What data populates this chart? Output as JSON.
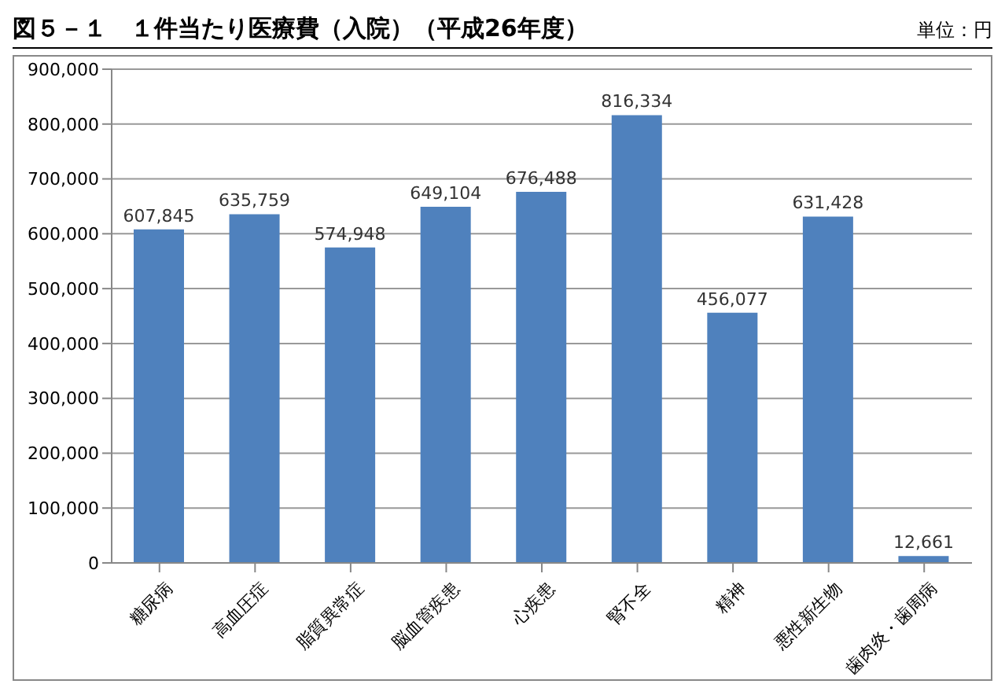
{
  "chart_data": {
    "type": "bar",
    "title": "図５－１　１件当たり医療費（入院）（平成26年度）",
    "annotations": [
      "単位：円"
    ],
    "categories": [
      "糖尿病",
      "高血圧症",
      "脂質異常症",
      "脳血管疾患",
      "心疾患",
      "腎不全",
      "精神",
      "悪性新生物",
      "歯肉炎・歯周病"
    ],
    "values": [
      607845,
      635759,
      574948,
      649104,
      676488,
      816334,
      456077,
      631428,
      12661
    ],
    "value_labels": [
      "607,845",
      "635,759",
      "574,948",
      "649,104",
      "676,488",
      "816,334",
      "456,077",
      "631,428",
      "12,661"
    ],
    "color": "#4f81bd",
    "ylim": [
      0,
      900000
    ],
    "yticks": [
      {
        "value": 0,
        "label": "0"
      },
      {
        "value": 100000,
        "label": "100,000"
      },
      {
        "value": 200000,
        "label": "200,000"
      },
      {
        "value": 300000,
        "label": "300,000"
      },
      {
        "value": 400000,
        "label": "400,000"
      },
      {
        "value": 500000,
        "label": "500,000"
      },
      {
        "value": 600000,
        "label": "600,000"
      },
      {
        "value": 700000,
        "label": "700,000"
      },
      {
        "value": 800000,
        "label": "800,000"
      },
      {
        "value": 900000,
        "label": "900,000"
      }
    ],
    "grid": "y"
  }
}
